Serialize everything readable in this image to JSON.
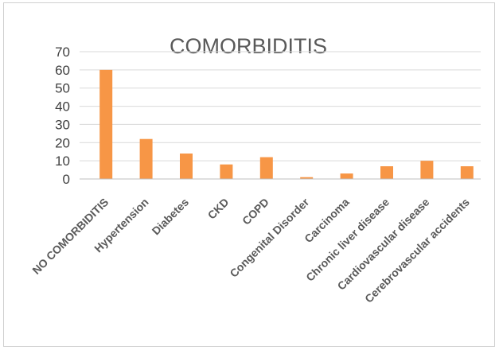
{
  "chart_data": {
    "type": "bar",
    "title": "COMORBIDITIS",
    "xlabel": "",
    "ylabel": "",
    "categories": [
      "NO COMORBIDITIS",
      "Hypertension",
      "Diabetes",
      "CKD",
      "COPD",
      "Congenital Disorder",
      "Carcinoma",
      "Chronic liver disease",
      "Cardiovascular disease",
      "Cerebrovascular accidents"
    ],
    "values": [
      60,
      22,
      14,
      8,
      12,
      1,
      3,
      7,
      10,
      7
    ],
    "ylim": [
      0,
      70
    ],
    "yticks": [
      0,
      10,
      20,
      30,
      40,
      50,
      60,
      70
    ],
    "grid": true,
    "legend": "none",
    "colors": {
      "bar": "#f79646",
      "grid": "#d9d9d9",
      "axis": "#bfbfbf"
    }
  }
}
